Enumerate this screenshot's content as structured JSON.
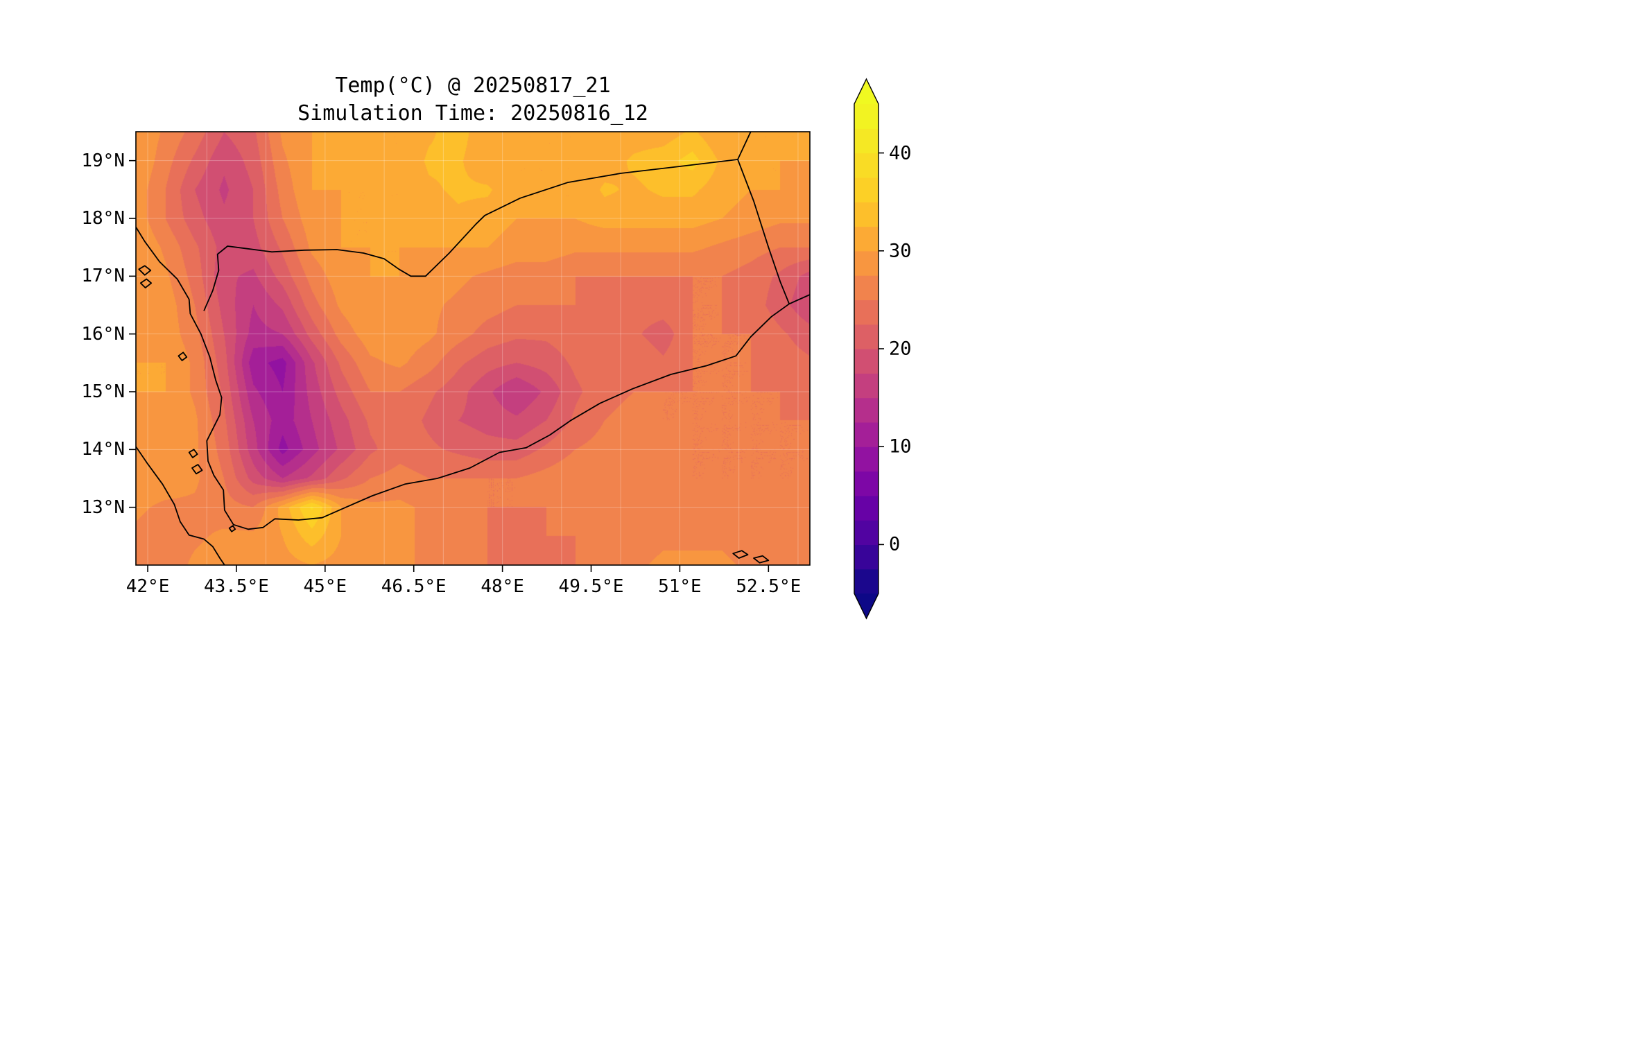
{
  "title": {
    "line1": "Temp(°C) @ 20250817_21",
    "line2": "Simulation Time: 20250816_12"
  },
  "axes": {
    "lon_range": [
      41.8,
      53.2
    ],
    "lat_range": [
      12.0,
      19.5
    ],
    "x_ticks": [
      {
        "value": 42,
        "label": "42°E"
      },
      {
        "value": 43.5,
        "label": "43.5°E"
      },
      {
        "value": 45,
        "label": "45°E"
      },
      {
        "value": 46.5,
        "label": "46.5°E"
      },
      {
        "value": 48,
        "label": "48°E"
      },
      {
        "value": 49.5,
        "label": "49.5°E"
      },
      {
        "value": 51,
        "label": "51°E"
      },
      {
        "value": 52.5,
        "label": "52.5°E"
      }
    ],
    "y_ticks": [
      {
        "value": 19,
        "label": "19°N"
      },
      {
        "value": 18,
        "label": "18°N"
      },
      {
        "value": 17,
        "label": "17°N"
      },
      {
        "value": 16,
        "label": "16°N"
      },
      {
        "value": 15,
        "label": "15°N"
      },
      {
        "value": 14,
        "label": "14°N"
      },
      {
        "value": 13,
        "label": "13°N"
      }
    ],
    "grid": true
  },
  "colorbar": {
    "vmin": -5,
    "vmax": 45,
    "step": 2.5,
    "extend": "both",
    "ticks": [
      {
        "value": 0,
        "label": "0"
      },
      {
        "value": 10,
        "label": "10"
      },
      {
        "value": 20,
        "label": "20"
      },
      {
        "value": 30,
        "label": "30"
      },
      {
        "value": 40,
        "label": "40"
      }
    ]
  },
  "colormap": {
    "name": "plasma",
    "stops": [
      [
        0.0,
        "#0d0887"
      ],
      [
        0.1,
        "#46039f"
      ],
      [
        0.2,
        "#7201a8"
      ],
      [
        0.3,
        "#9c179e"
      ],
      [
        0.4,
        "#bd3786"
      ],
      [
        0.5,
        "#d8576b"
      ],
      [
        0.6,
        "#ed7953"
      ],
      [
        0.7,
        "#fb9f3a"
      ],
      [
        0.8,
        "#fdca26"
      ],
      [
        0.9,
        "#f7e225"
      ],
      [
        1.0,
        "#f0f921"
      ]
    ]
  },
  "chart_data": {
    "type": "heatmap",
    "variable": "Temp",
    "units": "°C",
    "title": "Temp(°C) @ 20250817_21",
    "subtitle": "Simulation Time: 20250816_12",
    "lons": [
      41.8,
      42.3,
      42.79,
      43.29,
      43.78,
      44.28,
      44.77,
      45.27,
      45.77,
      46.26,
      46.76,
      47.25,
      47.75,
      48.24,
      48.74,
      49.23,
      49.73,
      50.23,
      50.72,
      51.22,
      51.71,
      52.21,
      52.7,
      53.2
    ],
    "lats": [
      19.5,
      19.0,
      18.5,
      18.0,
      17.5,
      17.0,
      16.5,
      16.0,
      15.5,
      15.0,
      14.5,
      14.0,
      13.5,
      13.0,
      12.5,
      12.0
    ],
    "values": [
      [
        30,
        27,
        24,
        20,
        22,
        28,
        30,
        31,
        30,
        30,
        32,
        34,
        30,
        30,
        30,
        30,
        30,
        31,
        31,
        33,
        30,
        30,
        30,
        30
      ],
      [
        30,
        26,
        22,
        18,
        21,
        27,
        30,
        31,
        30,
        30,
        33,
        33,
        30,
        30,
        30,
        30,
        31,
        33,
        34,
        36,
        32,
        30,
        30,
        30
      ],
      [
        29,
        25,
        20,
        17,
        20,
        26,
        30,
        30,
        30,
        30,
        32,
        33,
        33,
        30,
        30,
        30,
        33,
        32,
        33,
        33,
        31,
        30,
        30,
        29
      ],
      [
        29,
        25,
        21,
        18,
        20,
        25,
        29,
        30,
        30,
        30,
        31,
        32,
        31,
        30,
        30,
        30,
        31,
        31,
        31,
        31,
        30,
        29,
        28,
        28
      ],
      [
        30,
        27,
        23,
        19,
        19,
        23,
        28,
        30,
        30,
        30,
        30,
        30,
        30,
        29,
        29,
        28,
        28,
        28,
        28,
        28,
        27,
        26,
        25,
        25
      ],
      [
        30,
        28,
        24,
        18,
        17,
        21,
        26,
        29,
        30,
        30,
        29,
        28,
        27,
        26,
        26,
        25,
        25,
        25,
        25,
        25,
        25,
        24,
        22,
        19
      ],
      [
        30,
        29,
        25,
        19,
        15,
        18,
        24,
        28,
        30,
        29,
        28,
        27,
        26,
        25,
        25,
        25,
        24,
        24,
        24,
        25,
        25,
        24,
        21,
        18
      ],
      [
        30,
        29,
        26,
        20,
        14,
        15,
        21,
        26,
        29,
        29,
        28,
        26,
        24,
        23,
        23,
        24,
        24,
        23,
        21,
        25,
        25,
        25,
        23,
        21
      ],
      [
        30,
        30,
        27,
        21,
        11,
        9,
        17,
        23,
        27,
        28,
        26,
        23,
        21,
        20,
        21,
        23,
        24,
        25,
        23,
        25,
        25,
        25,
        24,
        23
      ],
      [
        30,
        30,
        27,
        22,
        13,
        10,
        16,
        21,
        25,
        25,
        23,
        21,
        18,
        15,
        18,
        22,
        24,
        25,
        25,
        25,
        25,
        25,
        25,
        24
      ],
      [
        29,
        30,
        28,
        23,
        15,
        11,
        15,
        19,
        23,
        24,
        22,
        20,
        19,
        18,
        20,
        23,
        25,
        26,
        25,
        25,
        25,
        25,
        25,
        25
      ],
      [
        29,
        30,
        28,
        24,
        16,
        9,
        14,
        18,
        22,
        24,
        23,
        22,
        21,
        21,
        23,
        25,
        26,
        27,
        26,
        25,
        25,
        25,
        25,
        25
      ],
      [
        29,
        29,
        28,
        25,
        19,
        15,
        18,
        22,
        25,
        26,
        25,
        25,
        25,
        25,
        26,
        27,
        27,
        27,
        26,
        25,
        25,
        25,
        25,
        25
      ],
      [
        28,
        27,
        27,
        26,
        25,
        31,
        38,
        30,
        28,
        28,
        27,
        26,
        25,
        25,
        25,
        26,
        26,
        26,
        26,
        26,
        26,
        26,
        26,
        26
      ],
      [
        27,
        26,
        27,
        28,
        28,
        30,
        34,
        30,
        29,
        28,
        27,
        26,
        25,
        24,
        25,
        25,
        25,
        26,
        27,
        27,
        27,
        26,
        26,
        26
      ],
      [
        27,
        26,
        28,
        29,
        29,
        29,
        30,
        29,
        29,
        28,
        27,
        26,
        25,
        24,
        24,
        25,
        26,
        27,
        28,
        28,
        28,
        27,
        26,
        26
      ]
    ],
    "map_outlines": {
      "coast_arabia": [
        [
          41.8,
          17.85
        ],
        [
          41.95,
          17.6
        ],
        [
          42.2,
          17.25
        ],
        [
          42.5,
          16.95
        ],
        [
          42.7,
          16.6
        ],
        [
          42.72,
          16.35
        ],
        [
          42.9,
          16.0
        ],
        [
          43.05,
          15.6
        ],
        [
          43.15,
          15.2
        ],
        [
          43.25,
          14.9
        ],
        [
          43.22,
          14.6
        ],
        [
          43.0,
          14.15
        ],
        [
          43.02,
          13.8
        ],
        [
          43.12,
          13.55
        ],
        [
          43.28,
          13.3
        ],
        [
          43.3,
          12.95
        ],
        [
          43.45,
          12.7
        ],
        [
          43.7,
          12.62
        ],
        [
          43.95,
          12.65
        ],
        [
          44.15,
          12.8
        ],
        [
          44.55,
          12.78
        ],
        [
          44.95,
          12.82
        ],
        [
          45.35,
          13.0
        ],
        [
          45.8,
          13.2
        ],
        [
          46.35,
          13.4
        ],
        [
          46.9,
          13.5
        ],
        [
          47.45,
          13.68
        ],
        [
          47.95,
          13.95
        ],
        [
          48.4,
          14.03
        ],
        [
          48.8,
          14.25
        ],
        [
          49.15,
          14.5
        ],
        [
          49.65,
          14.8
        ],
        [
          50.2,
          15.05
        ],
        [
          50.85,
          15.3
        ],
        [
          51.45,
          15.45
        ],
        [
          51.95,
          15.62
        ],
        [
          52.2,
          15.95
        ],
        [
          52.55,
          16.3
        ],
        [
          52.85,
          16.52
        ],
        [
          53.2,
          16.68
        ]
      ],
      "coast_africa": [
        [
          41.8,
          14.05
        ],
        [
          42.0,
          13.75
        ],
        [
          42.25,
          13.4
        ],
        [
          42.45,
          13.05
        ],
        [
          42.55,
          12.75
        ],
        [
          42.7,
          12.52
        ],
        [
          42.95,
          12.45
        ],
        [
          43.1,
          12.32
        ],
        [
          43.22,
          12.12
        ],
        [
          43.3,
          12.0
        ]
      ],
      "border_yemen_saudi": [
        [
          42.95,
          16.4
        ],
        [
          43.1,
          16.75
        ],
        [
          43.2,
          17.1
        ],
        [
          43.18,
          17.38
        ],
        [
          43.35,
          17.52
        ],
        [
          43.65,
          17.48
        ],
        [
          44.1,
          17.42
        ],
        [
          44.65,
          17.45
        ],
        [
          45.2,
          17.46
        ],
        [
          45.65,
          17.4
        ],
        [
          46.0,
          17.3
        ],
        [
          46.25,
          17.12
        ],
        [
          46.45,
          17.0
        ],
        [
          46.7,
          17.0
        ],
        [
          47.1,
          17.4
        ],
        [
          47.55,
          17.9
        ],
        [
          47.7,
          18.05
        ],
        [
          48.3,
          18.35
        ],
        [
          49.1,
          18.62
        ],
        [
          50.0,
          18.78
        ],
        [
          51.0,
          18.9
        ],
        [
          51.98,
          19.02
        ]
      ],
      "border_saudi_oman": [
        [
          51.98,
          19.02
        ],
        [
          52.2,
          19.5
        ]
      ],
      "border_yemen_oman": [
        [
          51.98,
          19.02
        ],
        [
          52.25,
          18.3
        ],
        [
          52.5,
          17.5
        ],
        [
          52.7,
          16.9
        ],
        [
          52.85,
          16.52
        ]
      ],
      "islands": [
        [
          [
            41.85,
            17.12
          ],
          [
            41.95,
            17.18
          ],
          [
            42.05,
            17.1
          ],
          [
            41.95,
            17.02
          ]
        ],
        [
          [
            41.88,
            16.88
          ],
          [
            41.98,
            16.95
          ],
          [
            42.06,
            16.88
          ],
          [
            41.96,
            16.8
          ]
        ],
        [
          [
            42.52,
            15.62
          ],
          [
            42.6,
            15.68
          ],
          [
            42.66,
            15.6
          ],
          [
            42.58,
            15.54
          ]
        ],
        [
          [
            42.7,
            13.95
          ],
          [
            42.78,
            14.0
          ],
          [
            42.84,
            13.92
          ],
          [
            42.76,
            13.86
          ]
        ],
        [
          [
            42.75,
            13.68
          ],
          [
            42.85,
            13.74
          ],
          [
            42.92,
            13.64
          ],
          [
            42.82,
            13.58
          ]
        ],
        [
          [
            43.38,
            12.64
          ],
          [
            43.44,
            12.68
          ],
          [
            43.48,
            12.62
          ],
          [
            43.42,
            12.58
          ]
        ],
        [
          [
            51.9,
            12.2
          ],
          [
            52.05,
            12.25
          ],
          [
            52.15,
            12.18
          ],
          [
            52.0,
            12.12
          ]
        ],
        [
          [
            52.25,
            12.12
          ],
          [
            52.4,
            12.16
          ],
          [
            52.5,
            12.08
          ],
          [
            52.35,
            12.04
          ]
        ]
      ]
    }
  }
}
